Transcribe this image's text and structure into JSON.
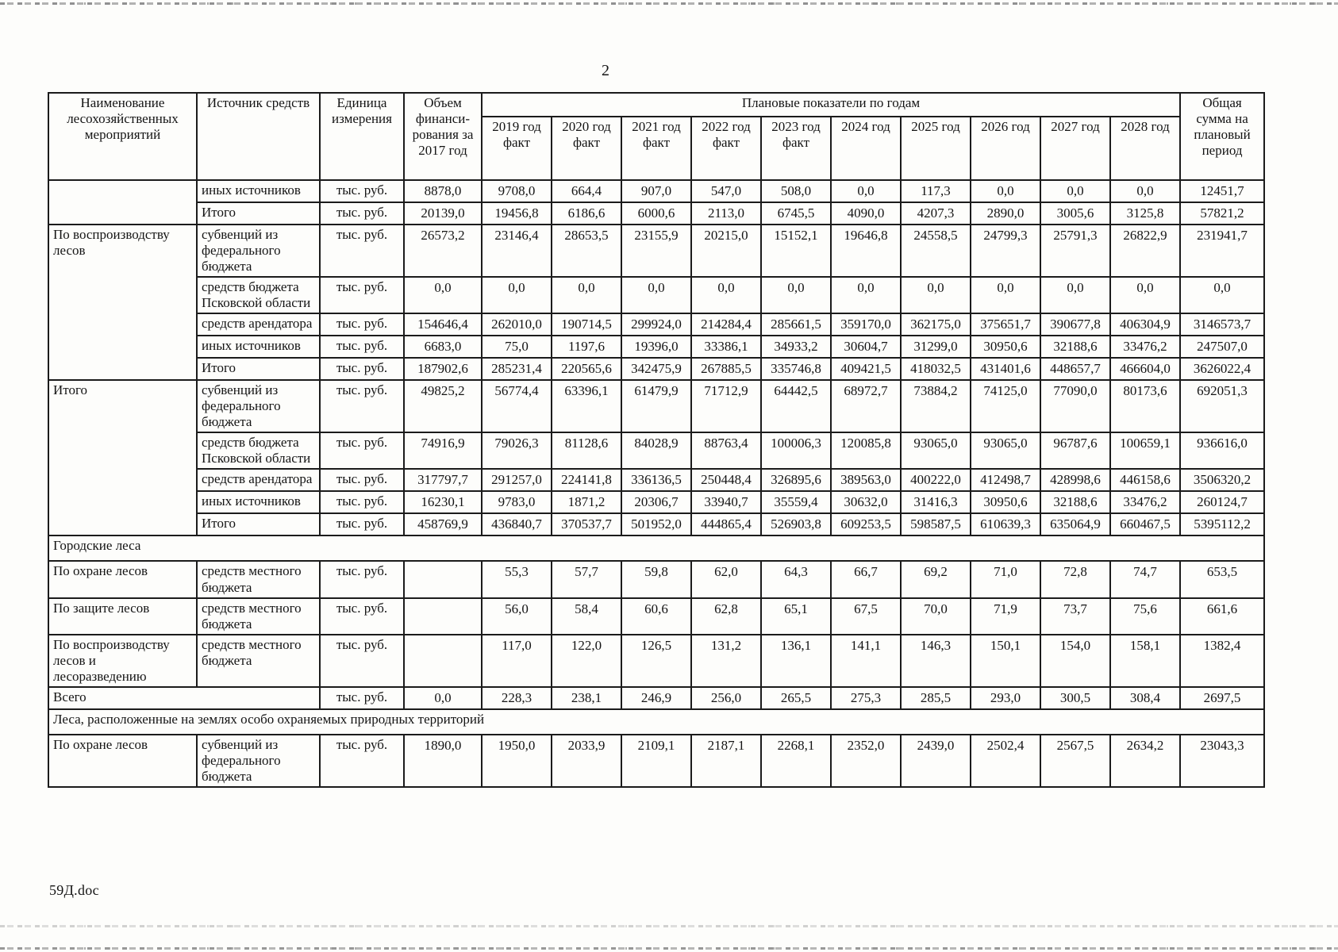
{
  "page": {
    "number": "2",
    "footer_filename": "59Д.doc"
  },
  "table": {
    "header": {
      "col_name": "Наименование лесохозяйственных мероприятий",
      "col_source": "Источник средств",
      "col_unit": "Единица измерения",
      "col_volume_2017": "Объем финанси-рования за 2017 год",
      "planned_group": "Плановые показатели по годам",
      "years": [
        "2019 год факт",
        "2020 год факт",
        "2021 год факт",
        "2022 год факт",
        "2023 год факт",
        "2024 год",
        "2025 год",
        "2026 год",
        "2027 год",
        "2028 год"
      ],
      "col_total": "Общая сумма на плановый период"
    },
    "rows": [
      {
        "name": "",
        "name_rowspan": 2,
        "source": "иных источников",
        "unit": "тыс. руб.",
        "values": [
          "8878,0",
          "9708,0",
          "664,4",
          "907,0",
          "547,0",
          "508,0",
          "0,0",
          "117,3",
          "0,0",
          "0,0",
          "0,0",
          "12451,7"
        ]
      },
      {
        "source": "Итого",
        "unit": "тыс. руб.",
        "values": [
          "20139,0",
          "19456,8",
          "6186,6",
          "6000,6",
          "2113,0",
          "6745,5",
          "4090,0",
          "4207,3",
          "2890,0",
          "3005,6",
          "3125,8",
          "57821,2"
        ]
      },
      {
        "name": "По воспроизводству лесов",
        "name_rowspan": 5,
        "source": "субвенций из федерального бюджета",
        "unit": "тыс. руб.",
        "values": [
          "26573,2",
          "23146,4",
          "28653,5",
          "23155,9",
          "20215,0",
          "15152,1",
          "19646,8",
          "24558,5",
          "24799,3",
          "25791,3",
          "26822,9",
          "231941,7"
        ]
      },
      {
        "source": "средств бюджета Псковской области",
        "unit": "тыс. руб.",
        "values": [
          "0,0",
          "0,0",
          "0,0",
          "0,0",
          "0,0",
          "0,0",
          "0,0",
          "0,0",
          "0,0",
          "0,0",
          "0,0",
          "0,0"
        ]
      },
      {
        "source": "средств арендатора",
        "unit": "тыс. руб.",
        "values": [
          "154646,4",
          "262010,0",
          "190714,5",
          "299924,0",
          "214284,4",
          "285661,5",
          "359170,0",
          "362175,0",
          "375651,7",
          "390677,8",
          "406304,9",
          "3146573,7"
        ]
      },
      {
        "source": "иных источников",
        "unit": "тыс. руб.",
        "values": [
          "6683,0",
          "75,0",
          "1197,6",
          "19396,0",
          "33386,1",
          "34933,2",
          "30604,7",
          "31299,0",
          "30950,6",
          "32188,6",
          "33476,2",
          "247507,0"
        ]
      },
      {
        "source": "Итого",
        "unit": "тыс. руб.",
        "values": [
          "187902,6",
          "285231,4",
          "220565,6",
          "342475,9",
          "267885,5",
          "335746,8",
          "409421,5",
          "418032,5",
          "431401,6",
          "448657,7",
          "466604,0",
          "3626022,4"
        ]
      },
      {
        "name": "Итого",
        "name_rowspan": 5,
        "source": "субвенций из федерального бюджета",
        "unit": "тыс. руб.",
        "values": [
          "49825,2",
          "56774,4",
          "63396,1",
          "61479,9",
          "71712,9",
          "64442,5",
          "68972,7",
          "73884,2",
          "74125,0",
          "77090,0",
          "80173,6",
          "692051,3"
        ]
      },
      {
        "source": "средств бюджета Псковской области",
        "unit": "тыс. руб.",
        "values": [
          "74916,9",
          "79026,3",
          "81128,6",
          "84028,9",
          "88763,4",
          "100006,3",
          "120085,8",
          "93065,0",
          "93065,0",
          "96787,6",
          "100659,1",
          "936616,0"
        ]
      },
      {
        "source": "средств арендатора",
        "unit": "тыс. руб.",
        "values": [
          "317797,7",
          "291257,0",
          "224141,8",
          "336136,5",
          "250448,4",
          "326895,6",
          "389563,0",
          "400222,0",
          "412498,7",
          "428998,6",
          "446158,6",
          "3506320,2"
        ]
      },
      {
        "source": "иных источников",
        "unit": "тыс. руб.",
        "values": [
          "16230,1",
          "9783,0",
          "1871,2",
          "20306,7",
          "33940,7",
          "35559,4",
          "30632,0",
          "31416,3",
          "30950,6",
          "32188,6",
          "33476,2",
          "260124,7"
        ]
      },
      {
        "source": "Итого",
        "unit": "тыс. руб.",
        "values": [
          "458769,9",
          "436840,7",
          "370537,7",
          "501952,0",
          "444865,4",
          "526903,8",
          "609253,5",
          "598587,5",
          "610639,3",
          "635064,9",
          "660467,5",
          "5395112,2"
        ]
      },
      {
        "section": "Городские леса"
      },
      {
        "name": "По охране лесов",
        "source": "средств местного бюджета",
        "unit": "тыс. руб.",
        "values": [
          "",
          "55,3",
          "57,7",
          "59,8",
          "62,0",
          "64,3",
          "66,7",
          "69,2",
          "71,0",
          "72,8",
          "74,7",
          "653,5"
        ]
      },
      {
        "name": "По защите лесов",
        "source": "средств местного бюджета",
        "unit": "тыс. руб.",
        "values": [
          "",
          "56,0",
          "58,4",
          "60,6",
          "62,8",
          "65,1",
          "67,5",
          "70,0",
          "71,9",
          "73,7",
          "75,6",
          "661,6"
        ]
      },
      {
        "name": "По воспроизводству лесов и лесоразведению",
        "source": "средств местного бюджета",
        "unit": "тыс. руб.",
        "values": [
          "",
          "117,0",
          "122,0",
          "126,5",
          "131,2",
          "136,1",
          "141,1",
          "146,3",
          "150,1",
          "154,0",
          "158,1",
          "1382,4"
        ]
      },
      {
        "name": "Всего",
        "name_colspan": 2,
        "unit": "тыс. руб.",
        "values": [
          "0,0",
          "228,3",
          "238,1",
          "246,9",
          "256,0",
          "265,5",
          "275,3",
          "285,5",
          "293,0",
          "300,5",
          "308,4",
          "2697,5"
        ]
      },
      {
        "section": "Леса, расположенные на землях особо охраняемых природных территорий"
      },
      {
        "name": "По охране лесов",
        "source": "субвенций из федерального бюджета",
        "unit": "тыс. руб.",
        "values": [
          "1890,0",
          "1950,0",
          "2033,9",
          "2109,1",
          "2187,1",
          "2268,1",
          "2352,0",
          "2439,0",
          "2502,4",
          "2567,5",
          "2634,2",
          "23043,3"
        ]
      }
    ]
  }
}
